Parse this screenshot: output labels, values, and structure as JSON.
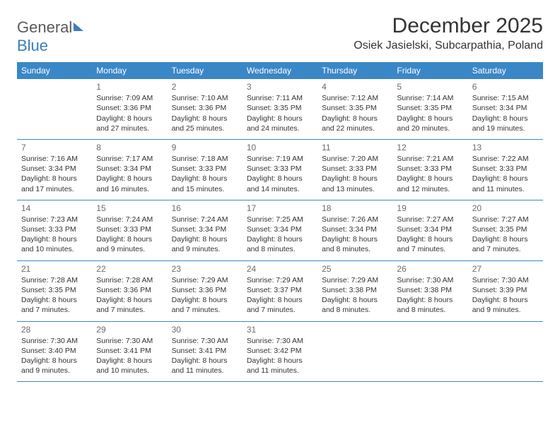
{
  "brand": {
    "part1": "General",
    "part2": "Blue"
  },
  "header": {
    "month_title": "December 2025",
    "location": "Osiek Jasielski, Subcarpathia, Poland"
  },
  "colors": {
    "header_bg": "#3a87c7",
    "header_fg": "#ffffff",
    "row_border": "#3a87c7",
    "brand_gray": "#5a5a5a",
    "brand_blue": "#3a7ebf",
    "text": "#333333",
    "daynum": "#6b6b6b",
    "page_bg": "#ffffff"
  },
  "dow": [
    "Sunday",
    "Monday",
    "Tuesday",
    "Wednesday",
    "Thursday",
    "Friday",
    "Saturday"
  ],
  "weeks": [
    [
      {
        "n": "",
        "sr": "",
        "ss": "",
        "dl": ""
      },
      {
        "n": "1",
        "sr": "Sunrise: 7:09 AM",
        "ss": "Sunset: 3:36 PM",
        "dl": "Daylight: 8 hours and 27 minutes."
      },
      {
        "n": "2",
        "sr": "Sunrise: 7:10 AM",
        "ss": "Sunset: 3:36 PM",
        "dl": "Daylight: 8 hours and 25 minutes."
      },
      {
        "n": "3",
        "sr": "Sunrise: 7:11 AM",
        "ss": "Sunset: 3:35 PM",
        "dl": "Daylight: 8 hours and 24 minutes."
      },
      {
        "n": "4",
        "sr": "Sunrise: 7:12 AM",
        "ss": "Sunset: 3:35 PM",
        "dl": "Daylight: 8 hours and 22 minutes."
      },
      {
        "n": "5",
        "sr": "Sunrise: 7:14 AM",
        "ss": "Sunset: 3:35 PM",
        "dl": "Daylight: 8 hours and 20 minutes."
      },
      {
        "n": "6",
        "sr": "Sunrise: 7:15 AM",
        "ss": "Sunset: 3:34 PM",
        "dl": "Daylight: 8 hours and 19 minutes."
      }
    ],
    [
      {
        "n": "7",
        "sr": "Sunrise: 7:16 AM",
        "ss": "Sunset: 3:34 PM",
        "dl": "Daylight: 8 hours and 17 minutes."
      },
      {
        "n": "8",
        "sr": "Sunrise: 7:17 AM",
        "ss": "Sunset: 3:34 PM",
        "dl": "Daylight: 8 hours and 16 minutes."
      },
      {
        "n": "9",
        "sr": "Sunrise: 7:18 AM",
        "ss": "Sunset: 3:33 PM",
        "dl": "Daylight: 8 hours and 15 minutes."
      },
      {
        "n": "10",
        "sr": "Sunrise: 7:19 AM",
        "ss": "Sunset: 3:33 PM",
        "dl": "Daylight: 8 hours and 14 minutes."
      },
      {
        "n": "11",
        "sr": "Sunrise: 7:20 AM",
        "ss": "Sunset: 3:33 PM",
        "dl": "Daylight: 8 hours and 13 minutes."
      },
      {
        "n": "12",
        "sr": "Sunrise: 7:21 AM",
        "ss": "Sunset: 3:33 PM",
        "dl": "Daylight: 8 hours and 12 minutes."
      },
      {
        "n": "13",
        "sr": "Sunrise: 7:22 AM",
        "ss": "Sunset: 3:33 PM",
        "dl": "Daylight: 8 hours and 11 minutes."
      }
    ],
    [
      {
        "n": "14",
        "sr": "Sunrise: 7:23 AM",
        "ss": "Sunset: 3:33 PM",
        "dl": "Daylight: 8 hours and 10 minutes."
      },
      {
        "n": "15",
        "sr": "Sunrise: 7:24 AM",
        "ss": "Sunset: 3:33 PM",
        "dl": "Daylight: 8 hours and 9 minutes."
      },
      {
        "n": "16",
        "sr": "Sunrise: 7:24 AM",
        "ss": "Sunset: 3:34 PM",
        "dl": "Daylight: 8 hours and 9 minutes."
      },
      {
        "n": "17",
        "sr": "Sunrise: 7:25 AM",
        "ss": "Sunset: 3:34 PM",
        "dl": "Daylight: 8 hours and 8 minutes."
      },
      {
        "n": "18",
        "sr": "Sunrise: 7:26 AM",
        "ss": "Sunset: 3:34 PM",
        "dl": "Daylight: 8 hours and 8 minutes."
      },
      {
        "n": "19",
        "sr": "Sunrise: 7:27 AM",
        "ss": "Sunset: 3:34 PM",
        "dl": "Daylight: 8 hours and 7 minutes."
      },
      {
        "n": "20",
        "sr": "Sunrise: 7:27 AM",
        "ss": "Sunset: 3:35 PM",
        "dl": "Daylight: 8 hours and 7 minutes."
      }
    ],
    [
      {
        "n": "21",
        "sr": "Sunrise: 7:28 AM",
        "ss": "Sunset: 3:35 PM",
        "dl": "Daylight: 8 hours and 7 minutes."
      },
      {
        "n": "22",
        "sr": "Sunrise: 7:28 AM",
        "ss": "Sunset: 3:36 PM",
        "dl": "Daylight: 8 hours and 7 minutes."
      },
      {
        "n": "23",
        "sr": "Sunrise: 7:29 AM",
        "ss": "Sunset: 3:36 PM",
        "dl": "Daylight: 8 hours and 7 minutes."
      },
      {
        "n": "24",
        "sr": "Sunrise: 7:29 AM",
        "ss": "Sunset: 3:37 PM",
        "dl": "Daylight: 8 hours and 7 minutes."
      },
      {
        "n": "25",
        "sr": "Sunrise: 7:29 AM",
        "ss": "Sunset: 3:38 PM",
        "dl": "Daylight: 8 hours and 8 minutes."
      },
      {
        "n": "26",
        "sr": "Sunrise: 7:30 AM",
        "ss": "Sunset: 3:38 PM",
        "dl": "Daylight: 8 hours and 8 minutes."
      },
      {
        "n": "27",
        "sr": "Sunrise: 7:30 AM",
        "ss": "Sunset: 3:39 PM",
        "dl": "Daylight: 8 hours and 9 minutes."
      }
    ],
    [
      {
        "n": "28",
        "sr": "Sunrise: 7:30 AM",
        "ss": "Sunset: 3:40 PM",
        "dl": "Daylight: 8 hours and 9 minutes."
      },
      {
        "n": "29",
        "sr": "Sunrise: 7:30 AM",
        "ss": "Sunset: 3:41 PM",
        "dl": "Daylight: 8 hours and 10 minutes."
      },
      {
        "n": "30",
        "sr": "Sunrise: 7:30 AM",
        "ss": "Sunset: 3:41 PM",
        "dl": "Daylight: 8 hours and 11 minutes."
      },
      {
        "n": "31",
        "sr": "Sunrise: 7:30 AM",
        "ss": "Sunset: 3:42 PM",
        "dl": "Daylight: 8 hours and 11 minutes."
      },
      {
        "n": "",
        "sr": "",
        "ss": "",
        "dl": ""
      },
      {
        "n": "",
        "sr": "",
        "ss": "",
        "dl": ""
      },
      {
        "n": "",
        "sr": "",
        "ss": "",
        "dl": ""
      }
    ]
  ]
}
